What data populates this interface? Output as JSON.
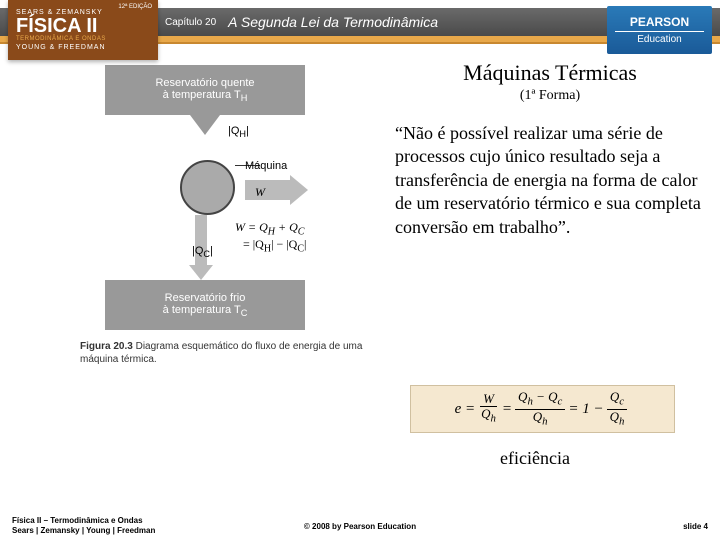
{
  "header": {
    "chapter_label": "Capítulo 20",
    "chapter_title": "A Segunda Lei da Termodinâmica",
    "book_top": "SEARS & ZEMANSKY",
    "book_title": "FÍSICA II",
    "book_sub1": "TERMODINÂMICA E ONDAS",
    "book_sub2": "YOUNG & FREEDMAN",
    "book_edition": "12ª EDIÇÃO",
    "pearson1": "PEARSON",
    "pearson2": "Education",
    "colors": {
      "bar_bg": "#5a5a5a",
      "orange": "#e8a84a",
      "book_bg": "#8a4a1a",
      "pearson_bg": "#1a5a98"
    }
  },
  "diagram": {
    "hot_label1": "Reservatório quente",
    "hot_label2": "à temperatura T",
    "hot_sub": "H",
    "qh": "|Q",
    "qh_sub": "H",
    "machine": "Máquina",
    "w": "W",
    "eq1": "W = Q",
    "eq1_h": "H",
    "eq1_plus": " + Q",
    "eq1_c": "C",
    "eq2_a": "= |Q",
    "eq2_h": "H",
    "eq2_mid": "| − |Q",
    "eq2_c": "C",
    "eq2_end": "|",
    "qc": "|Q",
    "qc_sub": "C",
    "cold_label1": "Reservatório frio",
    "cold_label2": "à temperatura T",
    "cold_sub": "C",
    "fig_num": "Figura 20.3",
    "fig_text": " Diagrama esquemático do fluxo de energia de uma máquina térmica.",
    "colors": {
      "reservoir": "#999999",
      "arrow": "#bbbbbb",
      "circle": "#aaaaaa"
    }
  },
  "content": {
    "title": "Máquinas Térmicas",
    "subtitle": "(1ª Forma)",
    "body": "“Não é possível realizar uma série de processos cujo único resultado seja a transferência de energia na forma de calor de um reservatório térmico e sua completa conversão em trabalho”.",
    "efficiency_label": "eficiência"
  },
  "formula": {
    "e": "e =",
    "f1_num": "W",
    "f1_den": "Q",
    "f1_den_sub": "h",
    "eq": "=",
    "f2_num_a": "Q",
    "f2_num_h": "h",
    "f2_num_mid": " − Q",
    "f2_num_c": "c",
    "f2_den": "Q",
    "f2_den_sub": "h",
    "one_minus": "= 1 −",
    "f3_num": "Q",
    "f3_num_sub": "c",
    "f3_den": "Q",
    "f3_den_sub": "h",
    "box_bg": "#f5e8d0"
  },
  "footer": {
    "left1": "Física II – Termodinâmica e Ondas",
    "left2": "Sears | Zemansky | Young | Freedman",
    "center": "© 2008 by Pearson Education",
    "right": "slide 4"
  }
}
